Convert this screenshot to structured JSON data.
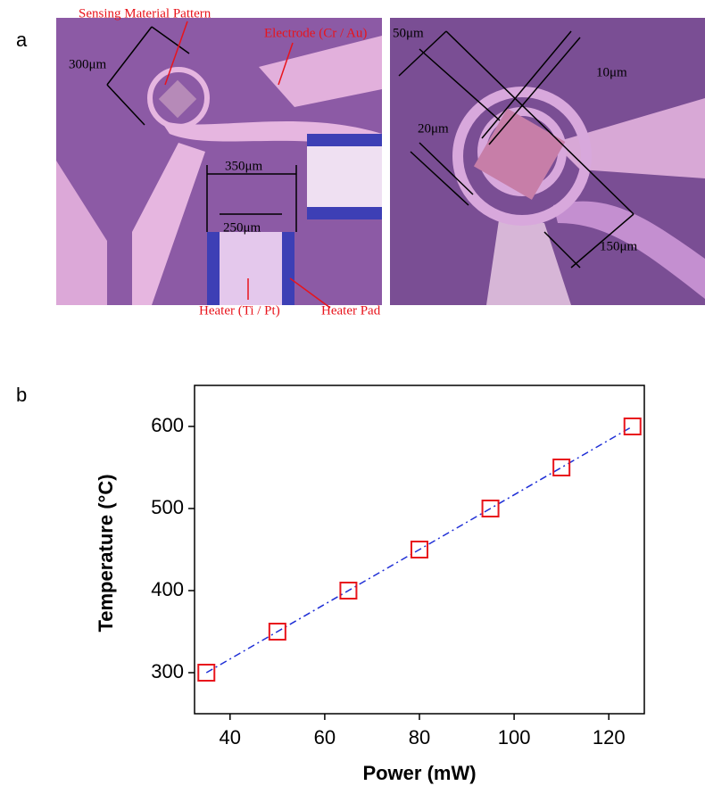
{
  "panels": {
    "a": "a",
    "b": "b"
  },
  "micrograph_left": {
    "labels": {
      "sensing": "Sensing Material Pattern",
      "electrode": "Electrode (Cr / Au)",
      "d300": "300μm",
      "d350": "350μm",
      "d250": "250μm",
      "heater": "Heater (Ti / Pt)",
      "heater_pad": "Heater Pad"
    }
  },
  "micrograph_right": {
    "labels": {
      "d50": "50μm",
      "d10": "10μm",
      "d20": "20μm",
      "d150": "150μm"
    }
  },
  "chart_data": {
    "type": "scatter",
    "x_label": "Power  (mW)",
    "y_label": "Temperature (°C)",
    "x": [
      35,
      50,
      65,
      80,
      95,
      110,
      125
    ],
    "series": [
      {
        "values": [
          300,
          350,
          400,
          450,
          500,
          550,
          600
        ],
        "color": "#e8141c",
        "marker": "square",
        "line_color": "#1f2fd6",
        "line_style": "dashdot"
      }
    ],
    "xlim": [
      32.5,
      127.5
    ],
    "xticks": [
      40,
      60,
      80,
      100,
      120
    ],
    "ylim": [
      250,
      650
    ],
    "yticks": [
      300,
      400,
      500,
      600
    ],
    "grid": false
  }
}
